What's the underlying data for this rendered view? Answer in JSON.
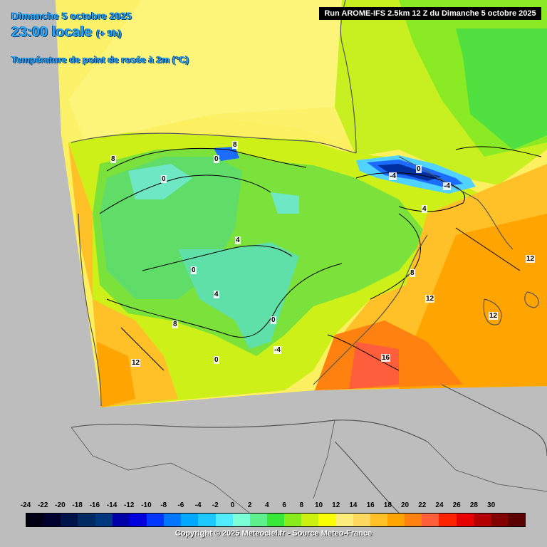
{
  "header": {
    "date": "Dimanche 5 octobre 2025",
    "time": "23:00 locale",
    "lead": "(+ 9h)",
    "variable": "Température de point de rosée à 2m (°C)"
  },
  "run_label": "Run AROME-IFS 2.5km 12 Z du Dimanche 5 octobre 2025",
  "contour_labels": [
    "8",
    "0",
    "8",
    "0",
    "-4",
    "0",
    "-4",
    "4",
    "4",
    "0",
    "4",
    "8",
    "0",
    "-4",
    "0",
    "8",
    "12",
    "12",
    "12",
    "12",
    "16"
  ],
  "legend": {
    "ticks": [
      "-24",
      "-22",
      "-20",
      "-18",
      "-16",
      "-14",
      "-12",
      "-10",
      "-8",
      "-6",
      "-4",
      "-2",
      "0",
      "2",
      "4",
      "6",
      "8",
      "10",
      "12",
      "14",
      "16",
      "18",
      "20",
      "22",
      "24",
      "26",
      "28",
      "30"
    ],
    "colors": [
      "#000014",
      "#00002c",
      "#00124a",
      "#002a62",
      "#00367e",
      "#0000a8",
      "#0000dc",
      "#0036ff",
      "#0076ff",
      "#00a8ff",
      "#1cc8ff",
      "#52ecff",
      "#7affd6",
      "#5ef08a",
      "#38e838",
      "#88ec1a",
      "#ccf010",
      "#fcff00",
      "#fcec7c",
      "#ffd860",
      "#ffc028",
      "#ffa400",
      "#ff8210",
      "#ff5e3c",
      "#ff2400",
      "#e60000",
      "#b40000",
      "#820000",
      "#5a0000"
    ]
  },
  "copyright": "Copyright © 2025 Meteociel.fr - Source Meteo-France"
}
